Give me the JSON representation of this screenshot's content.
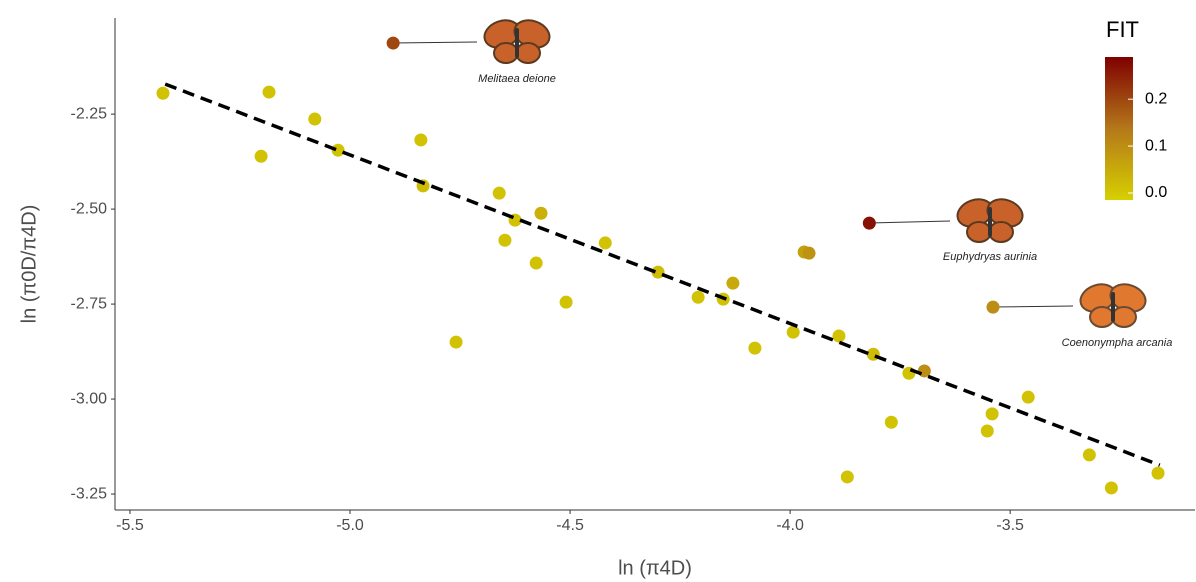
{
  "chart_data": {
    "type": "scatter",
    "x_label": "ln (π4D)",
    "y_label": "ln (π0D/π4D)",
    "x": [
      -5.425,
      -5.184,
      -5.202,
      -5.08,
      -5.027,
      -4.902,
      -4.839,
      -4.834,
      -4.759,
      -4.661,
      -4.648,
      -4.625,
      -4.577,
      -4.566,
      -4.509,
      -4.42,
      -4.3,
      -4.209,
      -4.152,
      -4.13,
      -4.08,
      -3.993,
      -3.968,
      -3.957,
      -3.889,
      -3.87,
      -3.82,
      -3.811,
      -3.77,
      -3.73,
      -3.695,
      -3.552,
      -3.541,
      -3.539,
      -3.459,
      -3.32,
      -3.27,
      -3.164
    ],
    "y": [
      -2.195,
      -2.192,
      -2.361,
      -2.263,
      -2.345,
      -2.063,
      -2.318,
      -2.439,
      -2.85,
      -2.458,
      -2.582,
      -2.529,
      -2.642,
      -2.511,
      -2.745,
      -2.589,
      -2.666,
      -2.732,
      -2.737,
      -2.695,
      -2.866,
      -2.824,
      -2.613,
      -2.616,
      -2.834,
      -3.205,
      -2.537,
      -2.882,
      -3.061,
      -2.932,
      -2.926,
      -3.084,
      -3.039,
      -2.758,
      -2.995,
      -3.147,
      -3.234,
      -3.195
    ],
    "fit": [
      0.01,
      0.01,
      0.01,
      0.01,
      0.01,
      0.2,
      0.01,
      0.02,
      0.01,
      0.01,
      0.01,
      0.01,
      0.01,
      0.04,
      0.01,
      0.01,
      0.02,
      0.01,
      0.01,
      0.05,
      0.01,
      0.01,
      0.07,
      0.09,
      0.01,
      0.01,
      0.27,
      0.02,
      0.01,
      0.01,
      0.1,
      0.01,
      0.01,
      0.1,
      0.01,
      0.01,
      0.01,
      0.01
    ],
    "trend_line": {
      "x": [
        -5.42,
        -3.16
      ],
      "y": [
        -2.171,
        -3.174
      ]
    },
    "xlim": [
      -5.534,
      -3.08
    ],
    "ylim": [
      -3.292,
      -1.997
    ],
    "xticks": [
      -5.5,
      {
        "value": -5.0,
        "label": "-5.0"
      },
      -4.5,
      {
        "value": -4.0,
        "label": "-4.0"
      },
      -3.5
    ],
    "yticks": [
      -2.25,
      {
        "value": -2.5,
        "label": "-2.50"
      },
      -2.75,
      {
        "value": -3.0,
        "label": "-3.00"
      },
      -3.25
    ],
    "colorbar_title": "FIT",
    "clim": [
      -0.015,
      0.29
    ],
    "cticks": [
      {
        "value": 0,
        "label": "0.0"
      },
      0.1,
      0.2
    ],
    "colorscale": [
      "#d6d000",
      "#b5781a",
      "#7f0000"
    ],
    "annotations": [
      "Melitaea deione",
      "Euphydryas aurinia",
      "Coenonympha arcania"
    ]
  }
}
